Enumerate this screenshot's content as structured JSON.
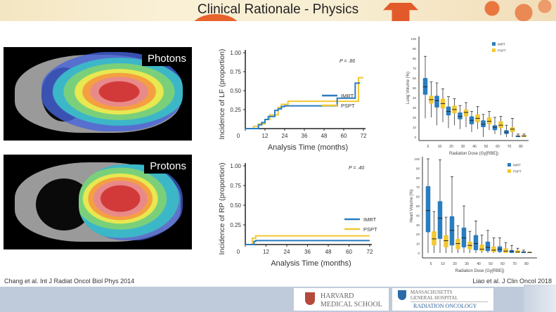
{
  "slide": {
    "title": "Clinical Rationale - Physics",
    "left_citation": "Chang et al. Int J Radiat Oncol Biol Phys 2014",
    "right_citation": "Liao et al. J Clin Oncol 2018",
    "logos": {
      "harvard_line1": "HARVARD",
      "harvard_line2": "MEDICAL SCHOOL",
      "mgh_line1": "MASSACHUSETTS",
      "mgh_line2": "GENERAL HOSPITAL",
      "mgh_line3": "RADIATION ONCOLOGY"
    },
    "images": [
      {
        "label": "Photons"
      },
      {
        "label": "Protons"
      }
    ]
  },
  "colors": {
    "imrt": "#2a7dbf",
    "pspt": "#f2c832"
  },
  "chart_data": [
    {
      "type": "line",
      "title": "",
      "xlabel": "Analysis Time (months)",
      "ylabel": "Incidence of LF (proportion)",
      "annotation": "P = .86",
      "xlim": [
        0,
        72
      ],
      "ylim": [
        0,
        1
      ],
      "xticks": [
        "0",
        "12",
        "24",
        "36",
        "48",
        "60",
        "72"
      ],
      "yticks": [
        "0.25",
        "0.50",
        "0.75",
        "1.00"
      ],
      "legend": [
        "IMRT",
        "PSPT"
      ],
      "series": [
        {
          "name": "IMRT",
          "step": true,
          "points": [
            [
              0,
              0
            ],
            [
              7,
              0
            ],
            [
              8,
              0.05
            ],
            [
              10,
              0.08
            ],
            [
              12,
              0.12
            ],
            [
              14,
              0.16
            ],
            [
              18,
              0.24
            ],
            [
              20,
              0.26
            ],
            [
              22,
              0.29
            ],
            [
              24,
              0.3
            ],
            [
              56,
              0.3
            ],
            [
              56,
              0.4
            ],
            [
              67,
              0.4
            ],
            [
              67,
              0.6
            ],
            [
              70,
              0.6
            ]
          ]
        },
        {
          "name": "PSPT",
          "step": true,
          "points": [
            [
              0,
              0
            ],
            [
              5,
              0.03
            ],
            [
              8,
              0.06
            ],
            [
              12,
              0.12
            ],
            [
              15,
              0.18
            ],
            [
              18,
              0.18
            ],
            [
              20,
              0.28
            ],
            [
              22,
              0.32
            ],
            [
              26,
              0.36
            ],
            [
              69,
              0.36
            ],
            [
              69,
              0.67
            ],
            [
              72,
              0.67
            ]
          ]
        }
      ]
    },
    {
      "type": "line",
      "title": "",
      "xlabel": "Analysis Time (months)",
      "ylabel": "Incidence of RP (proportion)",
      "annotation": "P = .40",
      "xlim": [
        0,
        72
      ],
      "ylim": [
        0,
        1
      ],
      "xticks": [
        "0",
        "12",
        "24",
        "36",
        "48",
        "60",
        "72"
      ],
      "yticks": [
        "0.25",
        "0.50",
        "0.75",
        "1.00"
      ],
      "legend": [
        "IMRT",
        "PSPT"
      ],
      "series": [
        {
          "name": "IMRT",
          "step": true,
          "points": [
            [
              0,
              0
            ],
            [
              4,
              0
            ],
            [
              5,
              0.04
            ],
            [
              6,
              0.05
            ],
            [
              72,
              0.05
            ]
          ]
        },
        {
          "name": "PSPT",
          "step": true,
          "points": [
            [
              0,
              0
            ],
            [
              3,
              0
            ],
            [
              4,
              0.08
            ],
            [
              6,
              0.11
            ],
            [
              72,
              0.11
            ]
          ]
        }
      ]
    },
    {
      "type": "box",
      "xlabel": "Radiation Dose (Gy[RBE])",
      "ylabel": "Lung Volume (%)",
      "ylim": [
        0,
        100
      ],
      "yticks": [
        "0",
        "10",
        "20",
        "30",
        "40",
        "50",
        "60",
        "70",
        "80",
        "90",
        "100"
      ],
      "categories": [
        "5",
        "10",
        "20",
        "30",
        "40",
        "50",
        "60",
        "70",
        "80"
      ],
      "legend": [
        "IMRT",
        "PSPT"
      ],
      "series": [
        {
          "name": "IMRT",
          "boxes": [
            [
              19,
              43,
              51,
              60,
              82
            ],
            [
              12,
              30,
              37,
              42,
              55
            ],
            [
              9,
              22,
              26,
              31,
              41
            ],
            [
              8,
              18,
              21,
              25,
              32
            ],
            [
              5,
              13,
              17,
              21,
              26
            ],
            [
              0,
              10,
              13,
              17,
              23
            ],
            [
              3,
              7,
              10,
              12,
              20
            ],
            [
              0,
              3,
              5,
              7,
              12
            ],
            [
              0,
              0,
              1,
              1,
              3
            ]
          ]
        },
        {
          "name": "PSPT",
          "boxes": [
            [
              20,
              34,
              38,
              42,
              56
            ],
            [
              15,
              29,
              34,
              39,
              49
            ],
            [
              12,
              24,
              28,
              32,
              39
            ],
            [
              10,
              21,
              25,
              28,
              35
            ],
            [
              8,
              15,
              19,
              23,
              31
            ],
            [
              7,
              13,
              16,
              20,
              26
            ],
            [
              2,
              9,
              12,
              16,
              21
            ],
            [
              0,
              5,
              8,
              10,
              19
            ],
            [
              0,
              0,
              1,
              2,
              3
            ]
          ]
        }
      ]
    },
    {
      "type": "box",
      "xlabel": "Radiation Dose (Gy[RBE])",
      "ylabel": "Heart Volume (%)",
      "ylim": [
        0,
        100
      ],
      "yticks": [
        "0",
        "10",
        "20",
        "30",
        "40",
        "50",
        "60",
        "70",
        "80",
        "90",
        "100"
      ],
      "categories": [
        "5",
        "10",
        "20",
        "30",
        "40",
        "50",
        "60",
        "70",
        "80"
      ],
      "legend": [
        "IMRT",
        "PSPT"
      ],
      "series": [
        {
          "name": "IMRT",
          "boxes": [
            [
              0,
              22,
              45,
              71,
              100
            ],
            [
              0,
              15,
              37,
              55,
              99
            ],
            [
              0,
              8,
              24,
              39,
              81
            ],
            [
              0,
              6,
              16,
              27,
              50
            ],
            [
              0,
              3,
              10,
              19,
              34
            ],
            [
              0,
              2,
              6,
              12,
              24
            ],
            [
              0,
              1,
              4,
              7,
              16
            ],
            [
              0,
              0,
              2,
              3,
              8
            ],
            [
              0,
              0,
              1,
              1,
              3
            ]
          ]
        },
        {
          "name": "PSPT",
          "boxes": [
            [
              0,
              8,
              15,
              23,
              44
            ],
            [
              0,
              6,
              13,
              19,
              38
            ],
            [
              0,
              4,
              10,
              15,
              29
            ],
            [
              0,
              4,
              8,
              12,
              23
            ],
            [
              0,
              2,
              4,
              9,
              19
            ],
            [
              0,
              1,
              3,
              7,
              16
            ],
            [
              0,
              0,
              2,
              5,
              11
            ],
            [
              0,
              0,
              1,
              3,
              5
            ],
            [
              0,
              0,
              0.5,
              1,
              1
            ]
          ]
        }
      ]
    }
  ]
}
